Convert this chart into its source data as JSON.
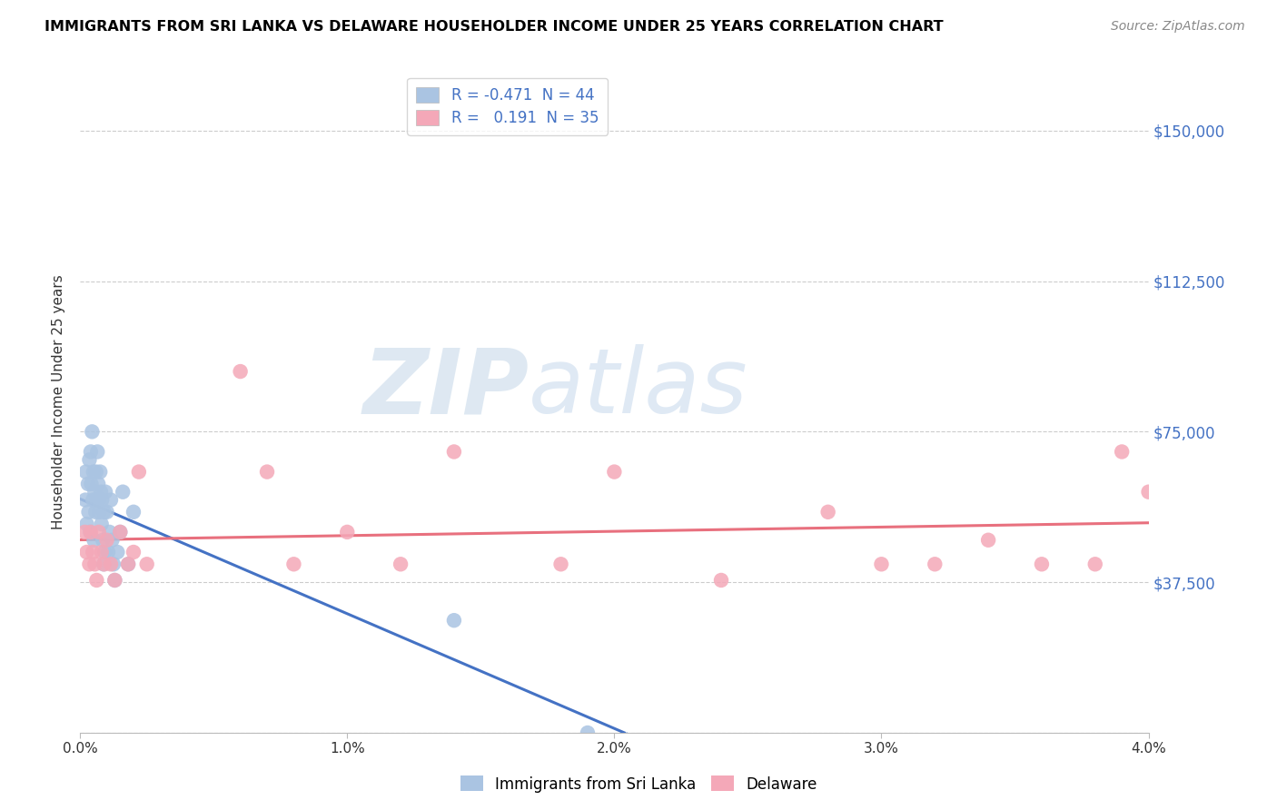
{
  "title": "IMMIGRANTS FROM SRI LANKA VS DELAWARE HOUSEHOLDER INCOME UNDER 25 YEARS CORRELATION CHART",
  "source": "Source: ZipAtlas.com",
  "ylabel": "Householder Income Under 25 years",
  "xlim": [
    0.0,
    0.04
  ],
  "ylim": [
    0,
    165000
  ],
  "yticks": [
    0,
    37500,
    75000,
    112500,
    150000
  ],
  "ytick_labels": [
    "",
    "$37,500",
    "$75,000",
    "$112,500",
    "$150,000"
  ],
  "xticks": [
    0.0,
    0.01,
    0.02,
    0.03,
    0.04
  ],
  "xtick_labels": [
    "0.0%",
    "1.0%",
    "2.0%",
    "3.0%",
    "4.0%"
  ],
  "legend_labels": [
    "Immigrants from Sri Lanka",
    "Delaware"
  ],
  "sri_lanka_R": -0.471,
  "sri_lanka_N": 44,
  "delaware_R": 0.191,
  "delaware_N": 35,
  "blue_color": "#aac4e2",
  "pink_color": "#f4a8b8",
  "blue_line_color": "#4472c4",
  "pink_line_color": "#e8707e",
  "legend_text_color": "#4472c4",
  "right_axis_color": "#4472c4",
  "watermark_zip": "ZIP",
  "watermark_atlas": "atlas",
  "sri_lanka_x": [
    0.0002,
    0.00022,
    0.00025,
    0.0003,
    0.00032,
    0.00035,
    0.00038,
    0.0004,
    0.00042,
    0.00045,
    0.00048,
    0.0005,
    0.00052,
    0.00055,
    0.00058,
    0.0006,
    0.00063,
    0.00065,
    0.00068,
    0.0007,
    0.00072,
    0.00075,
    0.00078,
    0.0008,
    0.00082,
    0.00085,
    0.00088,
    0.0009,
    0.00092,
    0.00095,
    0.001,
    0.00105,
    0.0011,
    0.00115,
    0.0012,
    0.00125,
    0.0013,
    0.0014,
    0.0015,
    0.0016,
    0.0018,
    0.002,
    0.014,
    0.019
  ],
  "sri_lanka_y": [
    58000,
    65000,
    52000,
    62000,
    55000,
    68000,
    50000,
    70000,
    62000,
    75000,
    58000,
    65000,
    48000,
    60000,
    55000,
    65000,
    58000,
    70000,
    62000,
    58000,
    55000,
    65000,
    60000,
    52000,
    58000,
    48000,
    42000,
    55000,
    45000,
    60000,
    55000,
    45000,
    50000,
    58000,
    48000,
    42000,
    38000,
    45000,
    50000,
    60000,
    42000,
    55000,
    28000,
    0
  ],
  "delaware_x": [
    0.00018,
    0.00025,
    0.00035,
    0.0004,
    0.00048,
    0.00055,
    0.00062,
    0.0007,
    0.0008,
    0.0009,
    0.001,
    0.00115,
    0.0013,
    0.0015,
    0.0018,
    0.002,
    0.0022,
    0.0025,
    0.006,
    0.007,
    0.008,
    0.01,
    0.012,
    0.014,
    0.018,
    0.02,
    0.024,
    0.028,
    0.03,
    0.032,
    0.034,
    0.036,
    0.038,
    0.039,
    0.04
  ],
  "delaware_y": [
    50000,
    45000,
    42000,
    50000,
    45000,
    42000,
    38000,
    50000,
    45000,
    42000,
    48000,
    42000,
    38000,
    50000,
    42000,
    45000,
    65000,
    42000,
    90000,
    65000,
    42000,
    50000,
    42000,
    70000,
    42000,
    65000,
    38000,
    55000,
    42000,
    42000,
    48000,
    42000,
    42000,
    70000,
    60000
  ]
}
